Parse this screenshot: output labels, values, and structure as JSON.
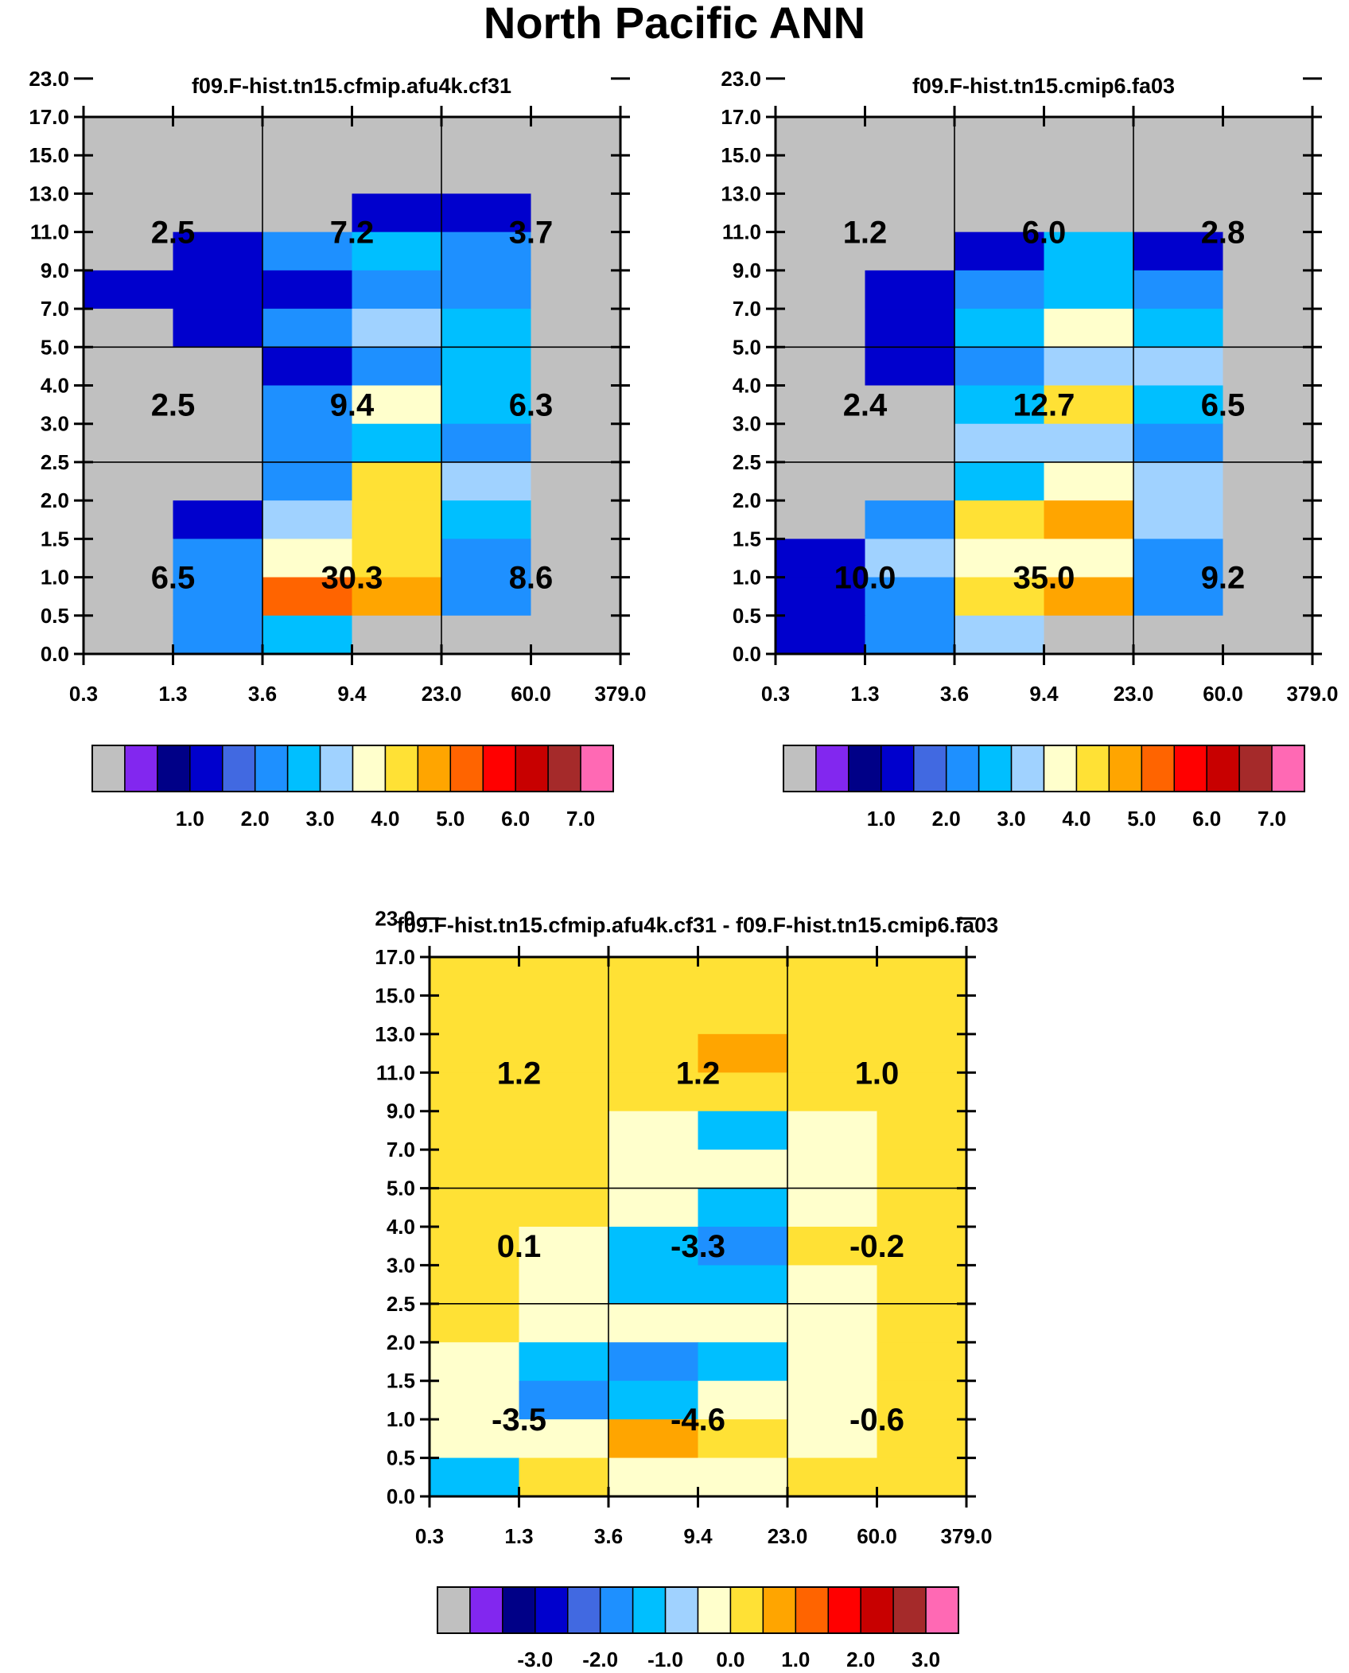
{
  "page": {
    "title": "North Pacific ANN"
  },
  "colors": {
    "missing": "#c0c0c0",
    "palette": [
      "#c0c0c0",
      "#8227ef",
      "#000087",
      "#0000cd",
      "#4169e1",
      "#1e90ff",
      "#00bfff",
      "#a0d2ff",
      "#ffffcc",
      "#ffe135",
      "#ffa500",
      "#ff6400",
      "#ff0000",
      "#c80000",
      "#a52a2a",
      "#ff69b4"
    ]
  },
  "colorbars": {
    "abs": {
      "labels": [
        "1.0",
        "2.0",
        "3.0",
        "4.0",
        "5.0",
        "6.0",
        "7.0"
      ],
      "levels": [
        0.5,
        1,
        1.5,
        2,
        2.5,
        3,
        3.5,
        4,
        4.5,
        5,
        5.5,
        6,
        6.5,
        7
      ]
    },
    "diff": {
      "labels": [
        "-3.0",
        "-2.0",
        "-1.0",
        "0.0",
        "1.0",
        "2.0",
        "3.0"
      ],
      "levels": [
        -3.5,
        -3,
        -2.5,
        -2,
        -1.5,
        -1,
        -0.5,
        0,
        0.5,
        1,
        1.5,
        2,
        2.5,
        3
      ]
    }
  },
  "chart_data": [
    {
      "type": "heatmap",
      "title": "f09.F-hist.tn15.cfmip.afu4k.cf31",
      "x_ticks": [
        "0.3",
        "1.3",
        "3.6",
        "9.4",
        "23.0",
        "60.0",
        "379.0"
      ],
      "y_ticks": [
        "0.0",
        "0.5",
        "1.0",
        "1.5",
        "2.0",
        "2.5",
        "3.0",
        "4.0",
        "5.0",
        "7.0",
        "9.0",
        "11.0",
        "13.0",
        "15.0",
        "17.0",
        "23.0"
      ],
      "colorbar": "abs",
      "rows_top_to_bottom": [
        [
          0,
          0,
          0,
          0,
          0,
          0
        ],
        [
          0,
          0,
          0,
          0,
          0,
          0
        ],
        [
          0,
          0,
          0,
          1,
          1,
          0
        ],
        [
          0,
          1,
          2,
          2.5,
          2,
          0
        ],
        [
          1,
          1,
          1,
          2,
          2,
          0
        ],
        [
          0,
          1,
          2,
          3,
          2.5,
          0
        ],
        [
          0,
          0,
          1,
          2,
          2.5,
          0
        ],
        [
          0,
          0,
          2,
          3.5,
          2.5,
          0
        ],
        [
          0,
          0,
          2,
          2.5,
          2,
          0
        ],
        [
          0,
          0,
          2,
          4,
          3,
          0
        ],
        [
          0,
          1,
          3,
          4,
          2.5,
          0
        ],
        [
          0,
          2,
          3.5,
          4,
          2,
          0
        ],
        [
          0,
          2,
          5,
          4.5,
          2,
          0
        ],
        [
          0,
          2,
          2.5,
          0,
          0,
          0
        ]
      ],
      "summary_labels": [
        [
          "2.5",
          "7.2",
          "3.7"
        ],
        [
          "2.5",
          "9.4",
          "6.3"
        ],
        [
          "6.5",
          "30.3",
          "8.6"
        ]
      ]
    },
    {
      "type": "heatmap",
      "title": "f09.F-hist.tn15.cmip6.fa03",
      "x_ticks": [
        "0.3",
        "1.3",
        "3.6",
        "9.4",
        "23.0",
        "60.0",
        "379.0"
      ],
      "y_ticks": [
        "0.0",
        "0.5",
        "1.0",
        "1.5",
        "2.0",
        "2.5",
        "3.0",
        "4.0",
        "5.0",
        "7.0",
        "9.0",
        "11.0",
        "13.0",
        "15.0",
        "17.0",
        "23.0"
      ],
      "colorbar": "abs",
      "rows_top_to_bottom": [
        [
          0,
          0,
          0,
          0,
          0,
          0
        ],
        [
          0,
          0,
          0,
          0,
          0,
          0
        ],
        [
          0,
          0,
          0,
          0,
          0,
          0
        ],
        [
          0,
          0,
          1,
          2.5,
          1,
          0
        ],
        [
          0,
          1,
          2,
          2.5,
          2,
          0
        ],
        [
          0,
          1,
          2.5,
          3.5,
          2.5,
          0
        ],
        [
          0,
          1,
          2,
          3,
          3,
          0
        ],
        [
          0,
          0,
          2.5,
          4,
          2.5,
          0
        ],
        [
          0,
          0,
          3,
          3,
          2,
          0
        ],
        [
          0,
          0,
          2.5,
          3.5,
          3,
          0
        ],
        [
          0,
          2,
          4,
          4.5,
          3,
          0
        ],
        [
          1,
          3,
          3.5,
          3.5,
          2,
          0
        ],
        [
          1,
          2,
          4,
          4.5,
          2,
          0
        ],
        [
          1,
          2,
          3,
          0,
          0,
          0
        ]
      ],
      "summary_labels": [
        [
          "1.2",
          "6.0",
          "2.8"
        ],
        [
          "2.4",
          "12.7",
          "6.5"
        ],
        [
          "10.0",
          "35.0",
          "9.2"
        ]
      ]
    },
    {
      "type": "heatmap",
      "title": "f09.F-hist.tn15.cfmip.afu4k.cf31 - f09.F-hist.tn15.cmip6.fa03",
      "x_ticks": [
        "0.3",
        "1.3",
        "3.6",
        "9.4",
        "23.0",
        "60.0",
        "379.0"
      ],
      "y_ticks": [
        "0.0",
        "0.5",
        "1.0",
        "1.5",
        "2.0",
        "2.5",
        "3.0",
        "4.0",
        "5.0",
        "7.0",
        "9.0",
        "11.0",
        "13.0",
        "15.0",
        "17.0",
        "23.0"
      ],
      "colorbar": "diff",
      "rows_top_to_bottom": [
        [
          0,
          0,
          0,
          0,
          0,
          0
        ],
        [
          0,
          0,
          0,
          0,
          0,
          0
        ],
        [
          0,
          0,
          0,
          0.7,
          0,
          0
        ],
        [
          0,
          0,
          0,
          0,
          0,
          0
        ],
        [
          0,
          0,
          -0.3,
          -1.2,
          -0.3,
          0
        ],
        [
          0,
          0,
          -0.3,
          -0.3,
          -0.3,
          0
        ],
        [
          0,
          0,
          -0.3,
          -1.2,
          -0.3,
          0
        ],
        [
          0,
          -0.3,
          -1.2,
          -1.7,
          0,
          0
        ],
        [
          0,
          -0.3,
          -1.2,
          -1.2,
          -0.3,
          0
        ],
        [
          0,
          -0.3,
          -0.3,
          -0.3,
          -0.3,
          0
        ],
        [
          -0.3,
          -1.2,
          -1.7,
          -1.2,
          -0.3,
          0
        ],
        [
          -0.3,
          -1.7,
          -1.2,
          -0.3,
          -0.3,
          0
        ],
        [
          -0.3,
          -0.3,
          0.7,
          0,
          -0.3,
          0
        ],
        [
          -1.2,
          0,
          -0.3,
          -0.3,
          0,
          0
        ]
      ],
      "summary_labels": [
        [
          "1.2",
          "1.2",
          "1.0"
        ],
        [
          "0.1",
          "-3.3",
          "-0.2"
        ],
        [
          "-3.5",
          "-4.6",
          "-0.6"
        ]
      ]
    }
  ]
}
